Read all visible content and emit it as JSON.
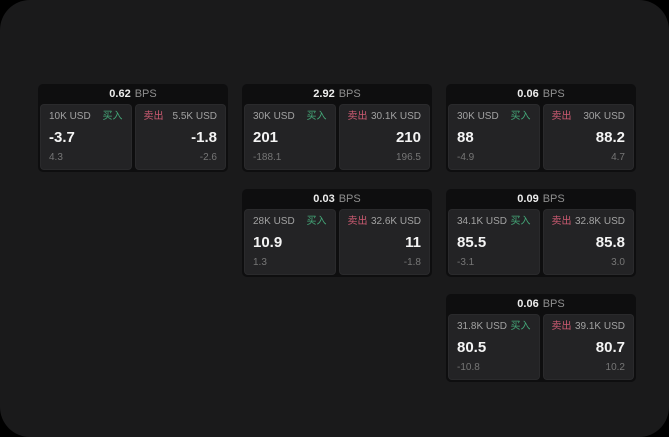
{
  "labels": {
    "bps": "BPS",
    "buy": "买入",
    "sell": "卖出"
  },
  "colors": {
    "outer_bg": "#000000",
    "panel_bg": "#1a1a1b",
    "card_bg": "#0e0e0f",
    "tile_bg": "#232325",
    "buy_green": "#44a879",
    "sell_red": "#cd5b72",
    "value_white": "#f4f4f4",
    "muted_gray": "#8f8f8f"
  },
  "cards": [
    {
      "bps": "0.62",
      "buy": {
        "amount": "10K USD",
        "value": "-3.7",
        "change": "4.3"
      },
      "sell": {
        "amount": "5.5K USD",
        "value": "-1.8",
        "change": "-2.6"
      }
    },
    {
      "bps": "2.92",
      "buy": {
        "amount": "30K USD",
        "value": "201",
        "change": "-188.1"
      },
      "sell": {
        "amount": "30.1K USD",
        "value": "210",
        "change": "196.5"
      }
    },
    {
      "bps": "0.06",
      "buy": {
        "amount": "30K USD",
        "value": "88",
        "change": "-4.9"
      },
      "sell": {
        "amount": "30K USD",
        "value": "88.2",
        "change": "4.7"
      }
    },
    {
      "bps": "0.03",
      "buy": {
        "amount": "28K USD",
        "value": "10.9",
        "change": "1.3"
      },
      "sell": {
        "amount": "32.6K USD",
        "value": "11",
        "change": "-1.8"
      }
    },
    {
      "bps": "0.09",
      "buy": {
        "amount": "34.1K USD",
        "value": "85.5",
        "change": "-3.1"
      },
      "sell": {
        "amount": "32.8K USD",
        "value": "85.8",
        "change": "3.0"
      }
    },
    {
      "bps": "0.06",
      "buy": {
        "amount": "31.8K USD",
        "value": "80.5",
        "change": "-10.8"
      },
      "sell": {
        "amount": "39.1K USD",
        "value": "80.7",
        "change": "10.2"
      }
    }
  ]
}
